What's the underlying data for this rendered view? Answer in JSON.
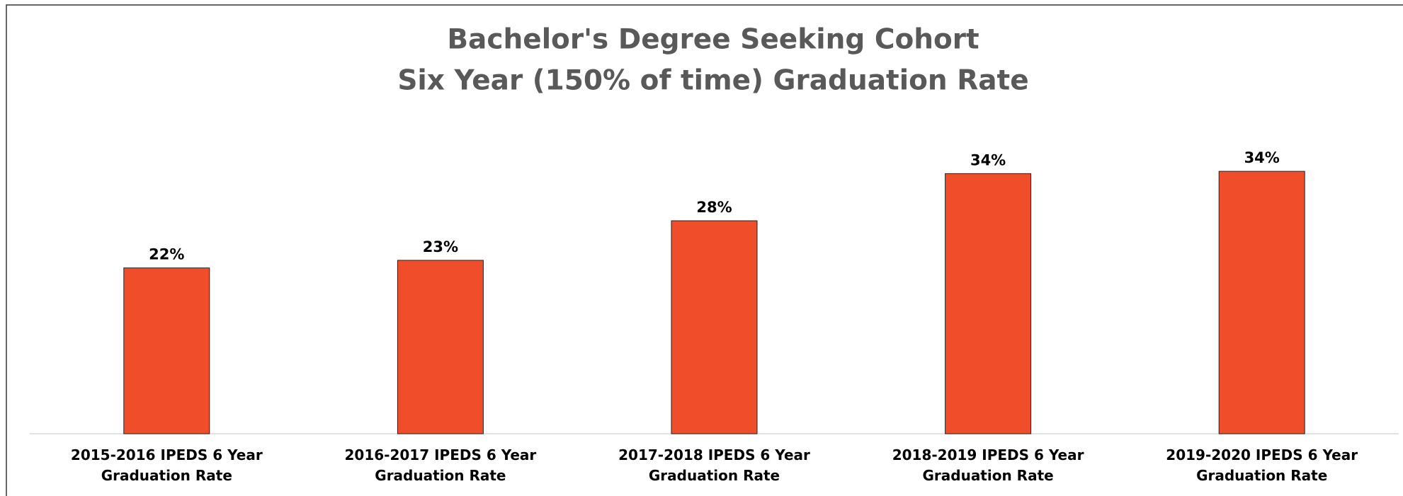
{
  "chart_data": {
    "type": "bar",
    "title": "Bachelor's Degree Seeking Cohort",
    "subtitle": "Six Year (150% of time) Graduation Rate",
    "categories": [
      "2015-2016 IPEDS 6 Year Graduation Rate",
      "2016-2017 IPEDS 6 Year Graduation Rate",
      "2017-2018 IPEDS 6 Year Graduation Rate",
      "2018-2019 IPEDS 6 Year Graduation Rate",
      "2019-2020 IPEDS 6 Year Graduation Rate"
    ],
    "values": [
      21.8,
      22.8,
      28,
      34.2,
      34.5
    ],
    "value_labels": [
      "22%",
      "23%",
      "28%",
      "34%",
      "34%"
    ],
    "color": "#f04e2b",
    "ylim": [
      0,
      40
    ]
  }
}
